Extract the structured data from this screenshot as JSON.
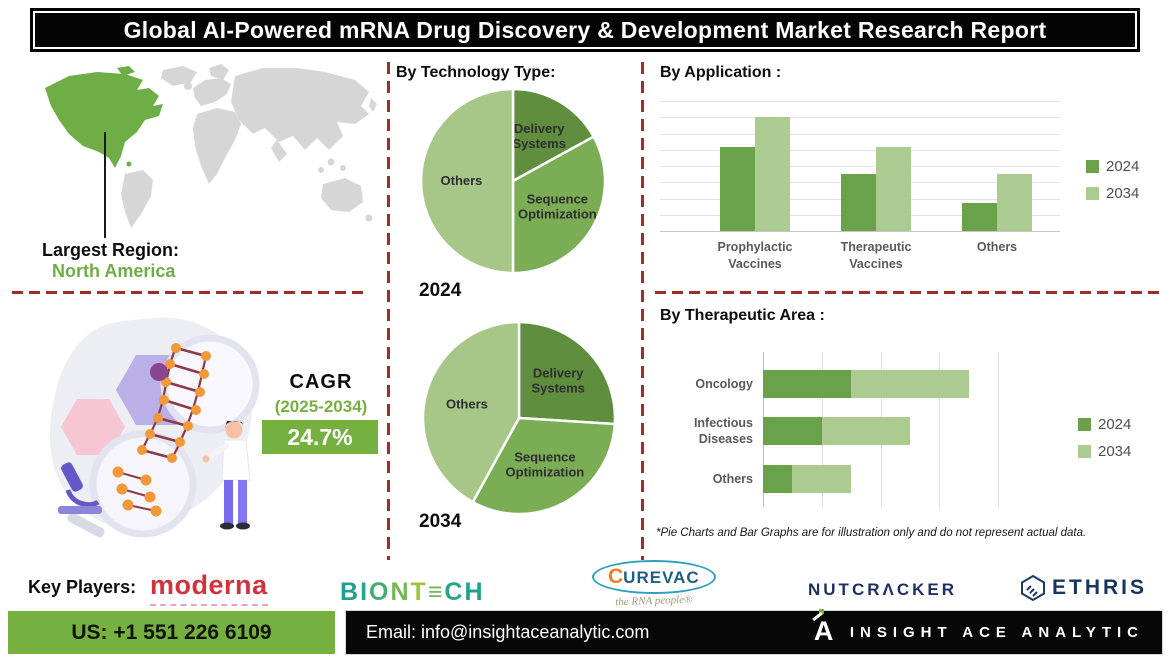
{
  "title": "Global AI-Powered mRNA Drug Discovery & Development Market Research Report",
  "region": {
    "label": "Largest Region:",
    "value": "North America"
  },
  "cagr": {
    "label": "CAGR",
    "period": "(2025-2034)",
    "value": "24.7%"
  },
  "sections": {
    "technology": {
      "title": "By Technology Type:",
      "year_labels": [
        "2024",
        "2034"
      ]
    },
    "application": {
      "title": "By Application :"
    },
    "therapeutic": {
      "title": "By Therapeutic Area :"
    }
  },
  "note": "*Pie Charts and Bar Graphs are for illustration only and do not represent actual data.",
  "key_players": {
    "label": "Key Players:",
    "players": [
      {
        "name": "moderna"
      },
      {
        "name": "BIONTECH"
      },
      {
        "name": "CUREVAC",
        "tagline": "the RNA people®"
      },
      {
        "name": "NUTCRACKER"
      },
      {
        "name": "ETHRIS"
      }
    ]
  },
  "footer": {
    "phone": "US: +1 551 226 6109",
    "email": "Email: info@insightaceanalytic.com",
    "brand": "INSIGHT ACE ANALYTIC"
  },
  "colors": {
    "accent_green": "#76b041",
    "region_green": "#6fae46",
    "divider_red": "#a02e28",
    "map_gray": "#d6d6d6",
    "pie_dark": "#5f8f3e",
    "pie_mid": "#7bad55",
    "pie_light": "#a6c787",
    "bar_2024": "#69a24a",
    "bar_2034": "#abcb90"
  },
  "chart_data": [
    {
      "type": "pie",
      "title": "By Technology Type — 2024",
      "labels": [
        "Delivery Systems",
        "Sequence Optimization",
        "Others"
      ],
      "values": [
        17,
        33,
        50
      ],
      "colors": [
        "#5f8f3e",
        "#7bad55",
        "#a6c787"
      ],
      "units": "illustrative share, %"
    },
    {
      "type": "pie",
      "title": "By Technology Type — 2034",
      "labels": [
        "Delivery Systems",
        "Sequence Optimization",
        "Others"
      ],
      "values": [
        26,
        32,
        42
      ],
      "colors": [
        "#5f8f3e",
        "#7bad55",
        "#a6c787"
      ],
      "units": "illustrative share, %"
    },
    {
      "type": "bar",
      "title": "By Application",
      "categories": [
        "Prophylactic Vaccines",
        "Therapeutic Vaccines",
        "Others"
      ],
      "series": [
        {
          "name": "2024",
          "color": "#69a24a",
          "values": [
            52,
            35,
            17
          ]
        },
        {
          "name": "2034",
          "color": "#abcb90",
          "values": [
            70,
            52,
            35
          ]
        }
      ],
      "ylim": [
        0,
        80
      ],
      "grid": true,
      "legend_position": "right",
      "units": "illustrative, unlabeled axis"
    },
    {
      "type": "bar",
      "subtype": "horizontal-stacked",
      "title": "By Therapeutic Area",
      "categories": [
        "Oncology",
        "Infectious Diseases",
        "Others"
      ],
      "series": [
        {
          "name": "2024",
          "color": "#69a24a",
          "values": [
            15,
            10,
            5
          ]
        },
        {
          "name": "2034",
          "color": "#abcb90",
          "values": [
            20,
            15,
            10
          ]
        }
      ],
      "xlim": [
        0,
        40
      ],
      "grid": true,
      "legend_position": "right",
      "units": "illustrative, unlabeled axis"
    }
  ]
}
